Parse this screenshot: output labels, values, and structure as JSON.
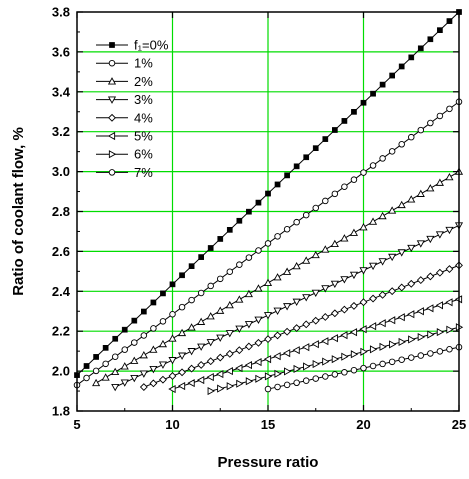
{
  "chart_data": {
    "type": "line",
    "xlabel": "Pressure ratio",
    "ylabel": "Ratio of coolant flow, %",
    "xlim": [
      5,
      25
    ],
    "ylim": [
      1.8,
      3.8
    ],
    "x_ticks": [
      "5",
      "10",
      "15",
      "20",
      "25"
    ],
    "y_ticks": [
      "1.8",
      "2.0",
      "2.2",
      "2.4",
      "2.6",
      "2.8",
      "3.0",
      "3.2",
      "3.4",
      "3.6",
      "3.8"
    ],
    "grid": true,
    "grid_color": "#00dd00",
    "legend_position": "top-left",
    "series": [
      {
        "name": "f₁=0%",
        "marker": "square-filled",
        "x_start": 5.0,
        "x_end": 25.0,
        "y_start": 1.98,
        "y_end": 3.8
      },
      {
        "name": "1%",
        "marker": "circle-open",
        "x_start": 5.0,
        "x_end": 25.0,
        "y_start": 1.93,
        "y_end": 3.35
      },
      {
        "name": "2%",
        "marker": "triangle-up-open",
        "x_start": 6.0,
        "x_end": 25.0,
        "y_start": 1.94,
        "y_end": 3.0
      },
      {
        "name": "3%",
        "marker": "triangle-down-open",
        "x_start": 7.0,
        "x_end": 25.0,
        "y_start": 1.92,
        "y_end": 2.73
      },
      {
        "name": "4%",
        "marker": "diamond-open",
        "x_start": 8.5,
        "x_end": 25.0,
        "y_start": 1.92,
        "y_end": 2.53
      },
      {
        "name": "5%",
        "marker": "triangle-left-open",
        "x_start": 10.0,
        "x_end": 25.0,
        "y_start": 1.91,
        "y_end": 2.36
      },
      {
        "name": "6%",
        "marker": "triangle-right-open",
        "x_start": 12.0,
        "x_end": 25.0,
        "y_start": 1.9,
        "y_end": 2.22
      },
      {
        "name": "7%",
        "marker": "circle-open",
        "x_start": 15.0,
        "x_end": 25.0,
        "y_start": 1.91,
        "y_end": 2.12
      }
    ]
  }
}
